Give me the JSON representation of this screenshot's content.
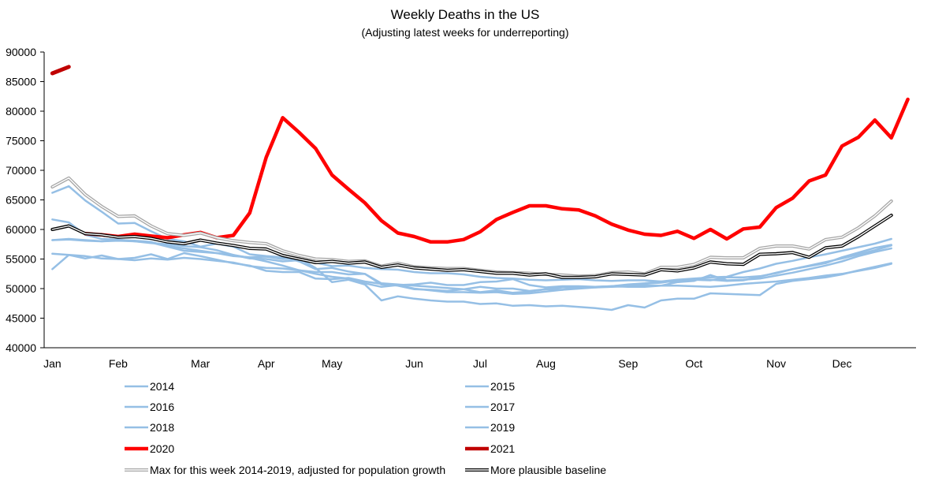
{
  "chart_data": {
    "type": "line",
    "title": "Weekly Deaths in the US",
    "subtitle": "(Adjusting latest weeks for underreporting)",
    "xlabel": "",
    "ylabel": "",
    "ylim": [
      40000,
      90000
    ],
    "ytick_step": 5000,
    "ytick_labels": [
      "40000",
      "45000",
      "50000",
      "55000",
      "60000",
      "65000",
      "70000",
      "75000",
      "80000",
      "85000",
      "90000"
    ],
    "weeks": 53,
    "month_labels": [
      "Jan",
      "Feb",
      "Mar",
      "Apr",
      "May",
      "Jun",
      "Jul",
      "Aug",
      "Sep",
      "Oct",
      "Nov",
      "Dec"
    ],
    "month_label_week": [
      1,
      5,
      10,
      14,
      18,
      23,
      27,
      31,
      36,
      40,
      45,
      49
    ],
    "grid": false,
    "legend_position": "bottom",
    "series": [
      {
        "name": "2014",
        "color": "#95bfe5",
        "width": 2.5,
        "style": "single",
        "values": [
          53300,
          55700,
          55100,
          55600,
          55000,
          55200,
          55800,
          55000,
          56000,
          55500,
          54900,
          54300,
          53900,
          53000,
          52800,
          52800,
          51700,
          51600,
          51800,
          51200,
          50800,
          50500,
          49900,
          49800,
          49600,
          49900,
          49400,
          49700,
          49300,
          49500,
          49900,
          49800,
          50200,
          50300,
          50400,
          50700,
          50900,
          51200,
          51500,
          51700,
          51900,
          52000,
          52800,
          53400,
          54200,
          54700,
          55300,
          55800,
          56400,
          57000,
          57600,
          58400,
          null
        ]
      },
      {
        "name": "2015",
        "color": "#95bfe5",
        "width": 2.5,
        "style": "single",
        "values": [
          61700,
          61200,
          59100,
          58400,
          58300,
          58000,
          57700,
          57500,
          57200,
          57000,
          56500,
          55700,
          55200,
          54600,
          53900,
          53100,
          52500,
          52000,
          51700,
          50900,
          50300,
          50600,
          50000,
          49700,
          49400,
          49400,
          49300,
          49400,
          49100,
          49200,
          49500,
          49800,
          50000,
          50200,
          50400,
          50600,
          50800,
          51000,
          51400,
          51500,
          51400,
          51900,
          51900,
          52100,
          52600,
          53300,
          53800,
          54300,
          55300,
          56100,
          56900,
          57400,
          null
        ]
      },
      {
        "name": "2016",
        "color": "#95bfe5",
        "width": 2.5,
        "style": "single",
        "values": [
          55900,
          55700,
          55500,
          55100,
          55000,
          54800,
          55100,
          54900,
          55200,
          55000,
          54700,
          54400,
          53800,
          53500,
          53400,
          53100,
          52800,
          52800,
          52400,
          52500,
          50900,
          50700,
          50500,
          50300,
          50100,
          49900,
          50300,
          50000,
          50000,
          49600,
          49900,
          50200,
          50200,
          50200,
          50300,
          50400,
          50500,
          50500,
          50500,
          50400,
          50300,
          50500,
          50800,
          51000,
          51200,
          51500,
          51800,
          52200,
          52500,
          53000,
          53500,
          54200,
          null
        ]
      },
      {
        "name": "2017",
        "color": "#95bfe5",
        "width": 2.5,
        "style": "single",
        "values": [
          58200,
          58400,
          58200,
          58000,
          58100,
          58000,
          57800,
          57100,
          56400,
          56200,
          56000,
          55700,
          55100,
          55000,
          54600,
          54800,
          54400,
          53800,
          53900,
          53500,
          53300,
          53200,
          52800,
          52600,
          52600,
          52400,
          52000,
          51800,
          51700,
          51500,
          51400,
          51500,
          51600,
          51400,
          51300,
          51400,
          51400,
          51200,
          51100,
          51500,
          51500,
          51300,
          51400,
          52000,
          52700,
          53300,
          53900,
          54500,
          55100,
          55800,
          56500,
          57300,
          null
        ]
      },
      {
        "name": "2018",
        "color": "#95bfe5",
        "width": 2.5,
        "style": "single",
        "values": [
          66200,
          67300,
          64900,
          63000,
          61000,
          61100,
          59700,
          58400,
          58000,
          57100,
          57600,
          57100,
          55800,
          55500,
          55300,
          54600,
          53300,
          53500,
          52900,
          52500,
          50700,
          50600,
          50700,
          51000,
          50600,
          50600,
          51100,
          51200,
          51600,
          50600,
          50200,
          50400,
          50400,
          50300,
          50400,
          50300,
          50300,
          50500,
          51100,
          51300,
          52300,
          51400,
          51500,
          51700,
          52200,
          52700,
          53300,
          53900,
          54600,
          55500,
          56200,
          56800,
          null
        ]
      },
      {
        "name": "2019",
        "color": "#95bfe5",
        "width": 2.5,
        "style": "single",
        "values": [
          58200,
          58300,
          58100,
          58000,
          58200,
          58100,
          57900,
          57200,
          56800,
          56400,
          56000,
          55500,
          55300,
          55400,
          55000,
          55100,
          53500,
          51100,
          51500,
          50700,
          48000,
          48700,
          48300,
          48000,
          47800,
          47800,
          47400,
          47500,
          47100,
          47200,
          47000,
          47100,
          46900,
          46700,
          46400,
          47200,
          46800,
          48000,
          48300,
          48300,
          49200,
          49100,
          49000,
          48900,
          50800,
          51300,
          51600,
          51900,
          52400,
          53100,
          53700,
          54300,
          null
        ]
      },
      {
        "name": "2020",
        "color": "#ff0000",
        "width": 4.5,
        "style": "single",
        "values": [
          null,
          null,
          59300,
          59100,
          58800,
          59200,
          58900,
          58600,
          59100,
          59500,
          58600,
          59000,
          62800,
          72200,
          78900,
          76400,
          73700,
          69200,
          66800,
          64500,
          61500,
          59400,
          58800,
          57900,
          57900,
          58300,
          59600,
          61700,
          62900,
          64000,
          64000,
          63500,
          63300,
          62300,
          60900,
          59900,
          59200,
          59000,
          59700,
          58500,
          60000,
          58400,
          60100,
          60400,
          63700,
          65300,
          68200,
          69200,
          74100,
          75600,
          78500,
          75500,
          82000
        ]
      },
      {
        "name": "2021",
        "color": "#c00000",
        "width": 5,
        "style": "single",
        "values": [
          86400,
          87500,
          null,
          null,
          null,
          null,
          null,
          null,
          null,
          null,
          null,
          null,
          null,
          null,
          null,
          null,
          null,
          null,
          null,
          null,
          null,
          null,
          null,
          null,
          null,
          null,
          null,
          null,
          null,
          null,
          null,
          null,
          null,
          null,
          null,
          null,
          null,
          null,
          null,
          null,
          null,
          null,
          null,
          null,
          null,
          null,
          null,
          null,
          null,
          null,
          null,
          null,
          null
        ]
      },
      {
        "name": "Max for this week 2014-2019, adjusted for population growth",
        "color": "#a6a6a6",
        "width": 4,
        "style": "double",
        "values": [
          67200,
          68700,
          65900,
          63900,
          62200,
          62300,
          60600,
          59300,
          59000,
          59400,
          58600,
          58100,
          57800,
          57600,
          56400,
          55600,
          55000,
          54900,
          54600,
          54700,
          53800,
          54300,
          53700,
          53500,
          53400,
          53400,
          53100,
          52800,
          52700,
          52600,
          52400,
          52300,
          52100,
          52200,
          52700,
          52800,
          52500,
          53600,
          53600,
          54100,
          55300,
          55200,
          55200,
          56800,
          57200,
          57200,
          56700,
          58300,
          58700,
          60300,
          62300,
          64800,
          null
        ]
      },
      {
        "name": "More plausible baseline",
        "color": "#000000",
        "width": 4,
        "style": "double",
        "values": [
          60000,
          60600,
          59300,
          59100,
          58700,
          58800,
          58500,
          57900,
          57600,
          58200,
          57700,
          57300,
          56800,
          56700,
          55600,
          55000,
          54400,
          54600,
          54300,
          54500,
          53600,
          54000,
          53500,
          53300,
          53100,
          53200,
          52900,
          52600,
          52600,
          52300,
          52500,
          51900,
          51900,
          52000,
          52500,
          52400,
          52300,
          53200,
          53000,
          53500,
          54500,
          54200,
          54100,
          55800,
          55900,
          56100,
          55300,
          56900,
          57200,
          58800,
          60600,
          62400,
          null
        ]
      }
    ]
  }
}
